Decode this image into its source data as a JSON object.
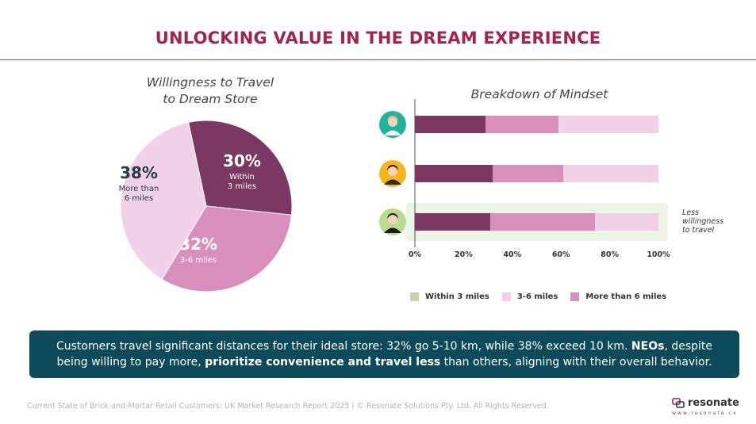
{
  "slide_title": "UNLOCKING VALUE IN THE DREAM EXPERIENCE",
  "chart_data": [
    {
      "type": "pie",
      "title": "Willingness to Travel to Dream Store",
      "title_lines": [
        "Willingness to Travel",
        "to Dream Store"
      ],
      "slices": [
        {
          "label": "Within 3 miles",
          "label_lines": [
            "Within",
            "3 miles"
          ],
          "value": 30,
          "value_label": "30%",
          "color": "#7a3862",
          "label_color": "#ffffff"
        },
        {
          "label": "3-6 miles",
          "label_lines": [
            "3-6 miles"
          ],
          "value": 32,
          "value_label": "32%",
          "color": "#d98fbb",
          "label_color": "#ffffff"
        },
        {
          "label": "More than 6 miles",
          "label_lines": [
            "More than",
            "6 miles"
          ],
          "value": 38,
          "value_label": "38%",
          "color": "#f2d0ea",
          "label_color": "#233c47"
        }
      ]
    },
    {
      "type": "bar",
      "orientation": "horizontal",
      "stacked": true,
      "title": "Breakdown of Mindset",
      "xlim": [
        0,
        100
      ],
      "x_ticks": [
        "0%",
        "20%",
        "40%",
        "60%",
        "80%",
        "100%"
      ],
      "rows": [
        {
          "avatar": "woman-avatar-icon",
          "avatar_bg": "#1fb39a",
          "values": [
            29,
            30,
            41
          ],
          "highlight": false
        },
        {
          "avatar": "man-avatar-icon",
          "avatar_bg": "#f5b51b",
          "values": [
            32,
            29,
            39
          ],
          "highlight": false
        },
        {
          "avatar": "curly-hair-avatar-icon",
          "avatar_bg": "#b9db8e",
          "values": [
            31,
            43,
            26
          ],
          "highlight": true
        }
      ],
      "segment_colors": [
        "#7a3862",
        "#d98fbb",
        "#f2d0ea"
      ],
      "legend": [
        {
          "label": "Within 3 miles",
          "color": "#cfcfb0"
        },
        {
          "label": "3-6 miles",
          "color": "#f2d0ea"
        },
        {
          "label": "More than 6 miles",
          "color": "#d98fbb"
        }
      ],
      "highlight_color": "#ecf4e6",
      "annotation": [
        "Less",
        "willingness",
        "to travel"
      ]
    }
  ],
  "callout": {
    "part1": "Customers travel significant distances for their ideal store: 32% go 5-10 km, while 38% exceed 10 km. ",
    "bold1": "NEOs",
    "part2": ", despite being willing to pay more, ",
    "bold2": "prioritize convenience and travel less",
    "part3": " than others, aligning with their overall behavior."
  },
  "footer": "Current State of Brick-and-Mortar Retail Customers: UK Market Research Report 2025 | © Resonate Solutions Pty. Ltd. All Rights Reserved.",
  "logo": {
    "word": "resonate",
    "url": "www.resonate.cx",
    "icon": "resonate-logo-icon"
  }
}
